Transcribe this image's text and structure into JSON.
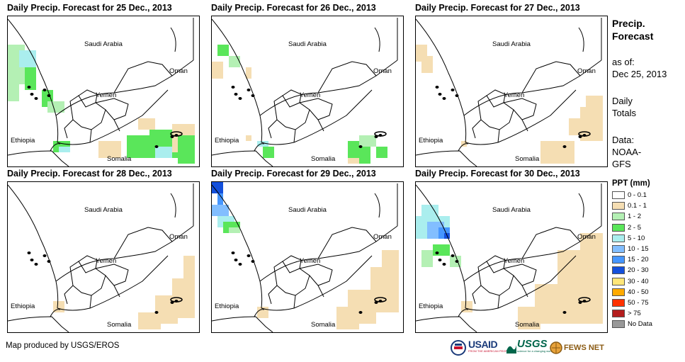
{
  "panels": [
    {
      "title": "Daily Precip. Forecast for 25 Dec., 2013",
      "pattern": "p25"
    },
    {
      "title": "Daily Precip. Forecast for 26 Dec., 2013",
      "pattern": "p26"
    },
    {
      "title": "Daily Precip. Forecast for 27 Dec., 2013",
      "pattern": "p27"
    },
    {
      "title": "Daily Precip. Forecast for 28 Dec., 2013",
      "pattern": "p28"
    },
    {
      "title": "Daily Precip. Forecast for 29 Dec., 2013",
      "pattern": "p29"
    },
    {
      "title": "Daily Precip. Forecast for 30 Dec., 2013",
      "pattern": "p30"
    }
  ],
  "map_labels": {
    "saudi_arabia": "Saudi Arabia",
    "oman": "Oman",
    "yemen": "Yemen",
    "ethiopia": "Ethiopia",
    "somalia": "Somalia"
  },
  "sidebar": {
    "title_line1": "Precip.",
    "title_line2": "Forecast",
    "asof_line1": "as of:",
    "asof_line2": "Dec 25, 2013",
    "daily_line1": "Daily",
    "daily_line2": "Totals",
    "data_line1": "Data:",
    "data_line2": "NOAA-",
    "data_line3": "GFS"
  },
  "legend": {
    "title": "PPT (mm)",
    "items": [
      {
        "label": "0 - 0.1",
        "color": "#ffffff"
      },
      {
        "label": "0.1 - 1",
        "color": "#f5deb3"
      },
      {
        "label": "1 - 2",
        "color": "#b4f0b4"
      },
      {
        "label": "2 - 5",
        "color": "#5ae65a"
      },
      {
        "label": "5 - 10",
        "color": "#aaeeee"
      },
      {
        "label": "10 - 15",
        "color": "#82beff"
      },
      {
        "label": "15 - 20",
        "color": "#4696ff"
      },
      {
        "label": "20 - 30",
        "color": "#1450dc"
      },
      {
        "label": "30 - 40",
        "color": "#ffe678"
      },
      {
        "label": "40 - 50",
        "color": "#ffaa00"
      },
      {
        "label": "50 - 75",
        "color": "#ff3200"
      },
      {
        "label": "> 75",
        "color": "#b41e1e"
      },
      {
        "label": "No Data",
        "color": "#999999"
      }
    ]
  },
  "credit": "Map produced by USGS/EROS",
  "logos": {
    "usaid": "USAID",
    "usaid_sub": "FROM THE AMERICAN PEOPLE",
    "usgs": "USGS",
    "usgs_sub": "science for a changing world",
    "fews": "FEWS NET"
  }
}
